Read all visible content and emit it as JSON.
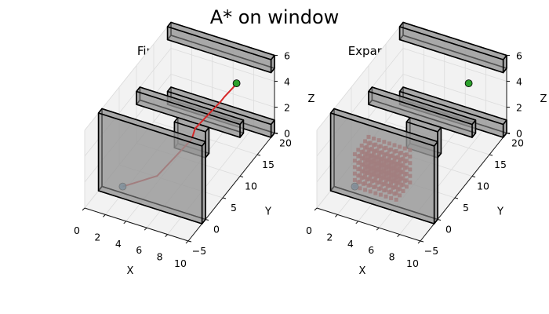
{
  "title": "A* on window",
  "colors": {
    "obstacle_face": "#969696",
    "obstacle_edge": "#000000",
    "start": "#1f77b4",
    "goal": "#2ca02c",
    "path": "#d62728",
    "expanded": "#d62728"
  },
  "chart_data": [
    {
      "type": "scatter",
      "title": "Final Path",
      "xlabel": "X",
      "ylabel": "Y",
      "zlabel": "Z",
      "xlim": [
        0,
        10
      ],
      "ylim": [
        -5,
        20
      ],
      "zlim": [
        0,
        6
      ],
      "xticks": [
        "0",
        "2",
        "4",
        "6",
        "8",
        "10"
      ],
      "yticks": [
        "−5",
        "0",
        "5",
        "10",
        "15",
        "20"
      ],
      "zticks": [
        "0",
        "2",
        "4",
        "6"
      ],
      "start": [
        2,
        0,
        0.5
      ],
      "goal": [
        8,
        15,
        5
      ],
      "path": [
        [
          2,
          0,
          0.5
        ],
        [
          2.5,
          1,
          0.5
        ],
        [
          3,
          2,
          0.5
        ],
        [
          3.5,
          3,
          0.5
        ],
        [
          4,
          4,
          0.5
        ],
        [
          4.5,
          5,
          1
        ],
        [
          5,
          6,
          1.5
        ],
        [
          5.5,
          7,
          2
        ],
        [
          6,
          8,
          2.5
        ],
        [
          6,
          9,
          3
        ],
        [
          6.5,
          10,
          3.5
        ],
        [
          7,
          11,
          4
        ],
        [
          7.5,
          12,
          4.5
        ],
        [
          7.5,
          13,
          4.5
        ],
        [
          8,
          14,
          5
        ],
        [
          8,
          15,
          5
        ]
      ]
    },
    {
      "type": "scatter",
      "title": "Expanded Nodes",
      "xlabel": "X",
      "ylabel": "Y",
      "zlabel": "Z",
      "xlim": [
        0,
        10
      ],
      "ylim": [
        -5,
        20
      ],
      "zlim": [
        0,
        6
      ],
      "xticks": [
        "0",
        "2",
        "4",
        "6",
        "8",
        "10"
      ],
      "yticks": [
        "−5",
        "0",
        "5",
        "10",
        "15",
        "20"
      ],
      "zticks": [
        "0",
        "2",
        "4",
        "6"
      ],
      "start": [
        2,
        0,
        0.5
      ],
      "goal": [
        8,
        15,
        5
      ],
      "expanded_region": {
        "x": [
          2,
          6
        ],
        "y": [
          0,
          4
        ],
        "z": [
          0.5,
          3
        ]
      }
    }
  ],
  "obstacles": [
    {
      "x": [
        0,
        10
      ],
      "y": [
        -1,
        0
      ],
      "z": [
        0,
        6
      ]
    },
    {
      "x": [
        0,
        10
      ],
      "y": [
        19,
        20
      ],
      "z": [
        5,
        6
      ]
    },
    {
      "x": [
        0,
        10
      ],
      "y": [
        19,
        20
      ],
      "z": [
        0,
        1
      ]
    },
    {
      "x": [
        0,
        10
      ],
      "y": [
        10,
        11
      ],
      "z": [
        3,
        4
      ]
    },
    {
      "x": [
        4,
        7
      ],
      "y": [
        9,
        10
      ],
      "z": [
        1,
        3
      ]
    }
  ]
}
